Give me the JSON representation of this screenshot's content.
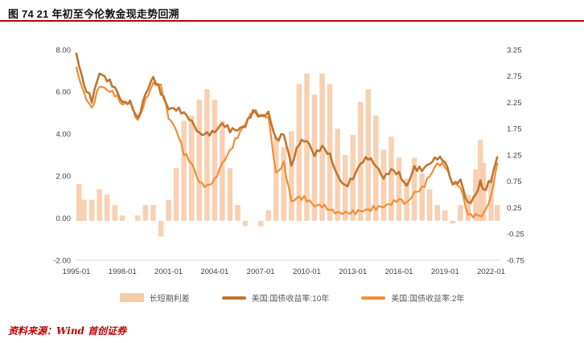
{
  "header": {
    "title": "图 74 21 年初至今伦敦金现走势回溯"
  },
  "footer": {
    "source": "资料来源：Wind  首创证券"
  },
  "colors": {
    "accent_red": "#C00000",
    "area": "#F7CBAA",
    "line_10y": "#C0752F",
    "line_2y": "#EF8F35"
  },
  "chart_data": {
    "type": "line",
    "title": "图 74 21 年初至今伦敦金现走势回溯",
    "grid": false,
    "legend_position": "bottom",
    "x_range": [
      1995.0,
      2022.6
    ],
    "x_ticks": [
      "1995-01",
      "1998-01",
      "2001-01",
      "2004-01",
      "2007-01",
      "2010-01",
      "2013-01",
      "2016-01",
      "2019-01",
      "2022-01"
    ],
    "left_axis": {
      "min": -2,
      "max": 8,
      "ticks": [
        "8.00",
        "6.00",
        "4.00",
        "2.00",
        "0.00",
        "-2.00"
      ]
    },
    "right_axis": {
      "min": -0.75,
      "max": 3.25,
      "ticks": [
        "3.25",
        "2.75",
        "2.25",
        "1.75",
        "1.25",
        "0.75",
        "0.25",
        "-0.25",
        "-0.75"
      ]
    },
    "x": [
      1995.0,
      1995.5,
      1996.0,
      1996.5,
      1997.0,
      1997.5,
      1998.0,
      1998.5,
      1999.0,
      1999.5,
      2000.0,
      2000.5,
      2001.0,
      2001.5,
      2002.0,
      2002.5,
      2003.0,
      2003.5,
      2004.0,
      2004.5,
      2005.0,
      2005.5,
      2006.0,
      2006.5,
      2007.0,
      2007.5,
      2008.0,
      2008.5,
      2009.0,
      2009.5,
      2010.0,
      2010.5,
      2011.0,
      2011.5,
      2012.0,
      2012.5,
      2013.0,
      2013.5,
      2014.0,
      2014.5,
      2015.0,
      2015.5,
      2016.0,
      2016.5,
      2017.0,
      2017.5,
      2018.0,
      2018.5,
      2019.0,
      2019.5,
      2020.0,
      2020.5,
      2021.0,
      2021.3,
      2021.5,
      2022.0,
      2022.4
    ],
    "series": [
      {
        "name": "长短期利差",
        "type": "bar-area",
        "axis": "right",
        "color": "#F7CBAA",
        "values": [
          0.7,
          0.4,
          0.4,
          0.6,
          0.5,
          0.3,
          0.1,
          0.0,
          0.1,
          0.3,
          0.3,
          -0.3,
          0.4,
          1.0,
          1.9,
          2.0,
          2.3,
          2.5,
          2.3,
          1.9,
          1.0,
          0.3,
          -0.1,
          0.0,
          -0.1,
          0.2,
          1.6,
          1.4,
          1.7,
          2.6,
          2.8,
          2.4,
          2.8,
          2.6,
          1.75,
          1.25,
          1.63,
          2.26,
          2.5,
          2.0,
          1.35,
          1.6,
          1.2,
          0.8,
          1.2,
          0.9,
          0.6,
          0.3,
          0.2,
          -0.05,
          0.3,
          0.5,
          0.98,
          1.54,
          1.1,
          0.8,
          0.3
        ]
      },
      {
        "name": "美国:国债收益率:10年",
        "type": "line",
        "axis": "left",
        "color": "#C0752F",
        "values": [
          7.8,
          6.3,
          5.6,
          6.9,
          6.6,
          6.2,
          5.5,
          5.5,
          4.7,
          5.9,
          6.7,
          6.0,
          5.2,
          5.2,
          5.0,
          4.6,
          4.0,
          4.0,
          4.1,
          4.5,
          4.2,
          4.2,
          4.4,
          5.1,
          4.8,
          5.0,
          3.7,
          4.0,
          2.5,
          3.6,
          3.7,
          3.0,
          3.4,
          3.0,
          2.0,
          1.5,
          1.9,
          2.6,
          2.9,
          2.5,
          1.9,
          2.3,
          2.1,
          1.5,
          2.4,
          2.3,
          2.6,
          2.9,
          2.7,
          1.6,
          1.8,
          0.65,
          1.1,
          1.7,
          1.3,
          1.8,
          2.9
        ]
      },
      {
        "name": "美国:国债收益率:2年",
        "type": "line",
        "axis": "left",
        "color": "#EF8F35",
        "values": [
          7.1,
          5.9,
          5.2,
          6.3,
          6.1,
          5.9,
          5.4,
          5.5,
          4.6,
          5.6,
          6.4,
          6.3,
          4.8,
          4.2,
          3.1,
          2.6,
          1.7,
          1.5,
          1.8,
          2.6,
          3.2,
          3.9,
          4.5,
          5.1,
          4.9,
          4.8,
          2.1,
          2.6,
          0.8,
          1.0,
          0.9,
          0.6,
          0.6,
          0.4,
          0.25,
          0.25,
          0.27,
          0.34,
          0.4,
          0.5,
          0.55,
          0.7,
          0.9,
          0.7,
          1.2,
          1.4,
          2.0,
          2.6,
          2.5,
          1.65,
          1.5,
          0.15,
          0.12,
          0.16,
          0.2,
          1.0,
          2.6
        ]
      }
    ]
  }
}
